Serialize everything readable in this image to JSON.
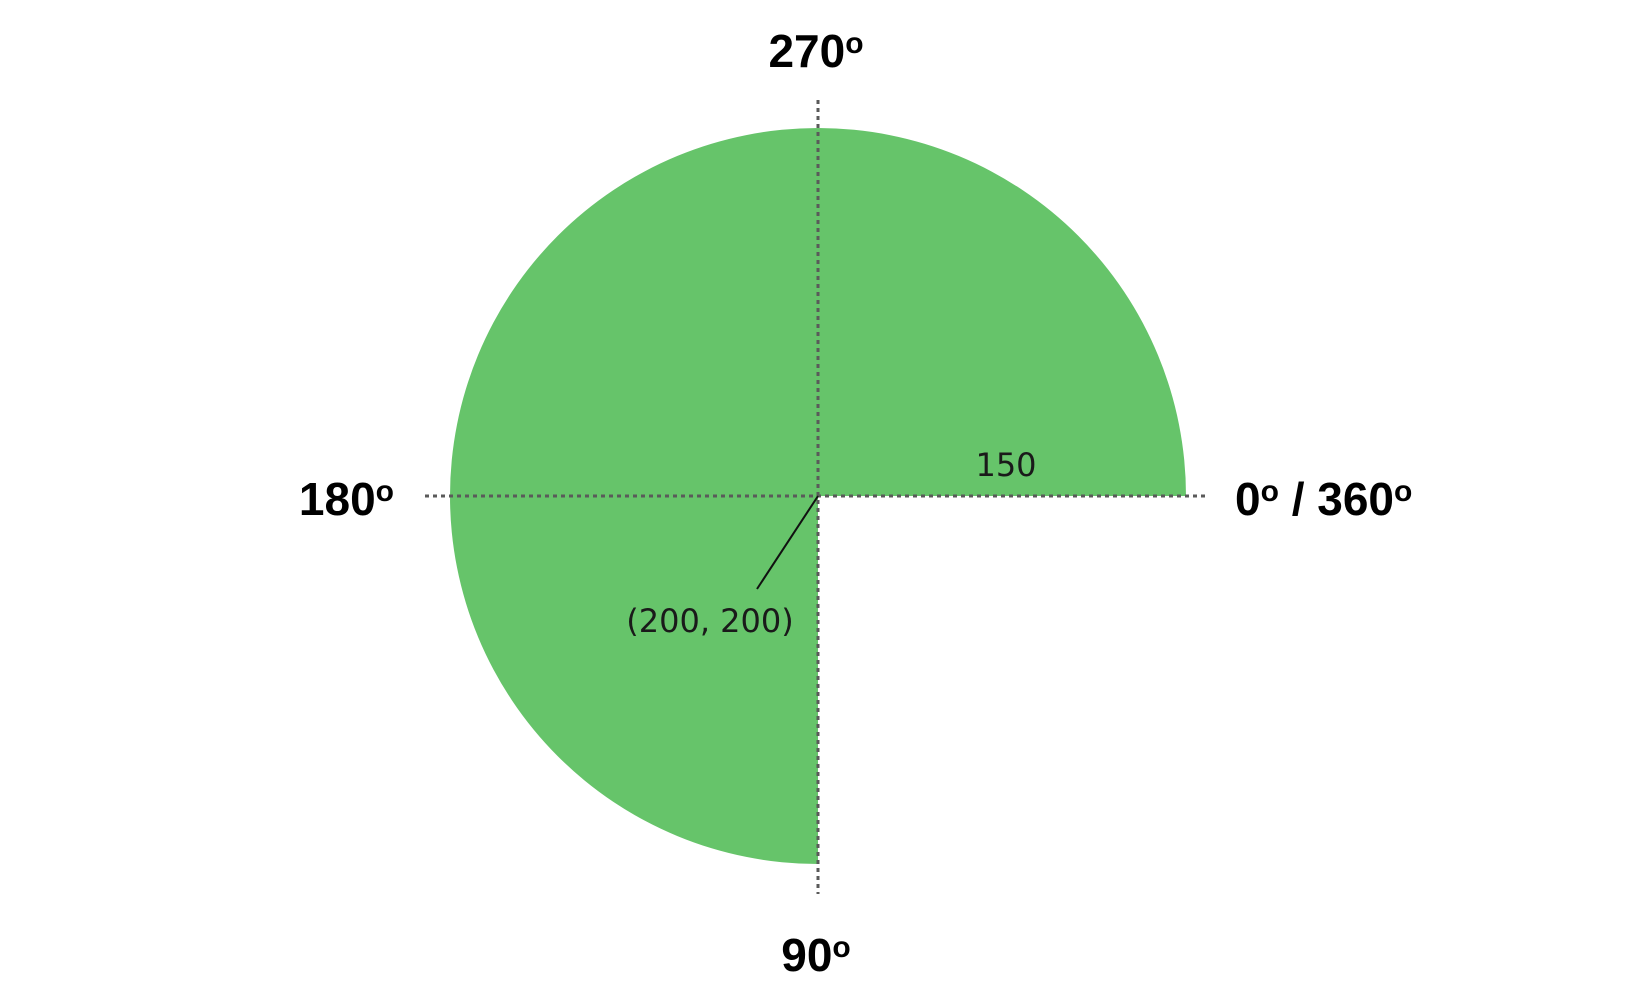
{
  "diagram": {
    "labels": {
      "angle_0_360": {
        "value": "0",
        "sep": " / ",
        "value2": "360",
        "degree": "o"
      },
      "angle_90": {
        "value": "90",
        "degree": "o"
      },
      "angle_180": {
        "value": "180",
        "degree": "o"
      },
      "angle_270": {
        "value": "270",
        "degree": "o"
      }
    },
    "radius_label": "150",
    "center_label": "(200, 200)",
    "arc": {
      "start_angle_deg": 0,
      "end_angle_deg": 270,
      "direction": "counterclockwise (through 270°, 180°, to 90°)"
    },
    "colors": {
      "fill": "#66c46a",
      "axis": "#5a5a5a",
      "text": "#000000"
    }
  }
}
